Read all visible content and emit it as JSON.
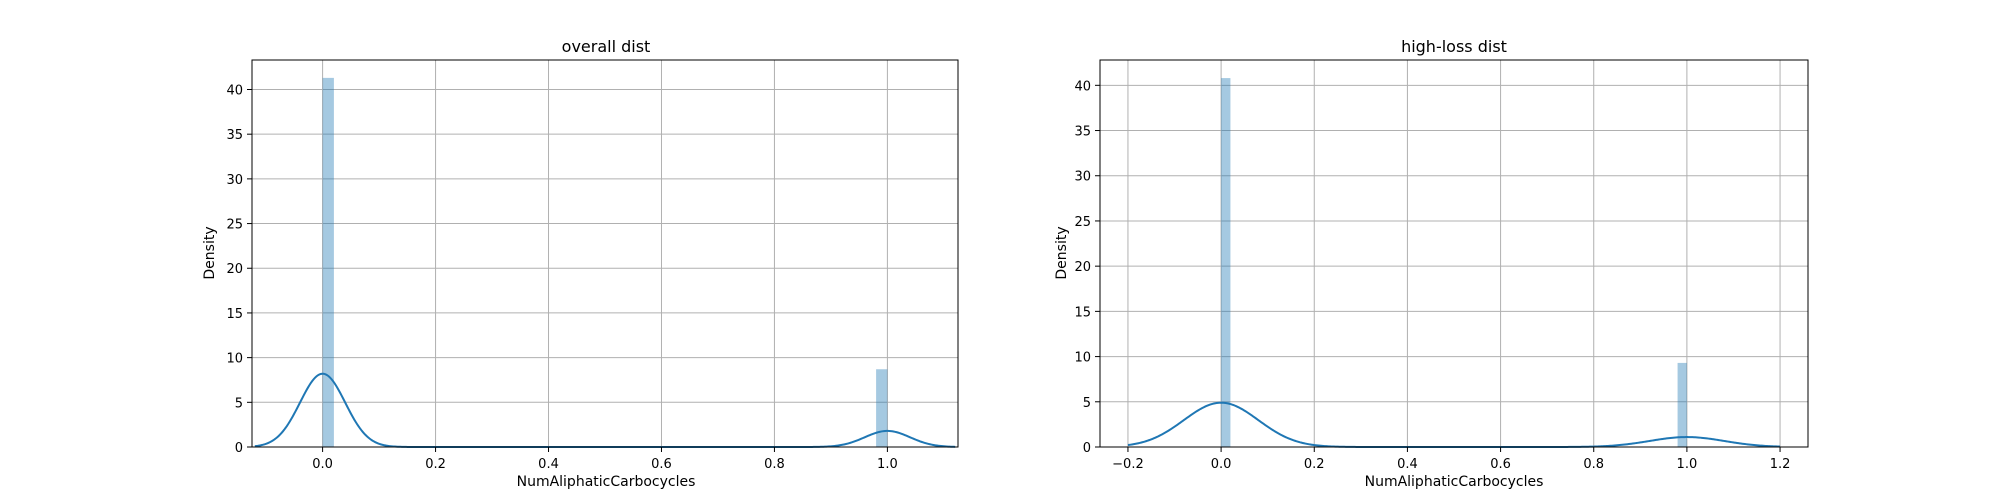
{
  "chart_data": [
    {
      "type": "bar",
      "title": "overall dist",
      "xlabel": "NumAliphaticCarbocycles",
      "ylabel": "Density",
      "xlim": [
        -0.125,
        1.125
      ],
      "ylim": [
        0,
        43.3
      ],
      "grid": true,
      "x_ticks": [
        0.0,
        0.2,
        0.4,
        0.6,
        0.8,
        1.0
      ],
      "x_tick_labels": [
        "0.0",
        "0.2",
        "0.4",
        "0.6",
        "0.8",
        "1.0"
      ],
      "y_ticks": [
        0,
        5,
        10,
        15,
        20,
        25,
        30,
        35,
        40
      ],
      "y_tick_labels": [
        "0",
        "5",
        "10",
        "15",
        "20",
        "25",
        "30",
        "35",
        "40"
      ],
      "bars": [
        {
          "x0": 0.0,
          "x1": 0.02,
          "value": 41.3
        },
        {
          "x0": 0.98,
          "x1": 1.0,
          "value": 8.7
        }
      ],
      "kde": {
        "components": [
          {
            "mean": 0.0,
            "sd": 0.04,
            "peak": 8.2
          },
          {
            "mean": 1.0,
            "sd": 0.04,
            "peak": 1.8
          }
        ],
        "x_range": [
          -0.12,
          1.12
        ]
      }
    },
    {
      "type": "bar",
      "title": "high-loss dist",
      "xlabel": "NumAliphaticCarbocycles",
      "ylabel": "Density",
      "xlim": [
        -0.26,
        1.26
      ],
      "ylim": [
        0,
        42.8
      ],
      "grid": true,
      "x_ticks": [
        -0.2,
        0.0,
        0.2,
        0.4,
        0.6,
        0.8,
        1.0,
        1.2
      ],
      "x_tick_labels": [
        "−0.2",
        "0.0",
        "0.2",
        "0.4",
        "0.6",
        "0.8",
        "1.0",
        "1.2"
      ],
      "y_ticks": [
        0,
        5,
        10,
        15,
        20,
        25,
        30,
        35,
        40
      ],
      "y_tick_labels": [
        "0",
        "5",
        "10",
        "15",
        "20",
        "25",
        "30",
        "35",
        "40"
      ],
      "bars": [
        {
          "x0": 0.0,
          "x1": 0.02,
          "value": 40.8
        },
        {
          "x0": 0.98,
          "x1": 1.0,
          "value": 9.3
        }
      ],
      "kde": {
        "components": [
          {
            "mean": 0.0,
            "sd": 0.08,
            "peak": 4.9
          },
          {
            "mean": 1.0,
            "sd": 0.08,
            "peak": 1.1
          }
        ],
        "x_range": [
          -0.2,
          1.2
        ]
      }
    }
  ]
}
